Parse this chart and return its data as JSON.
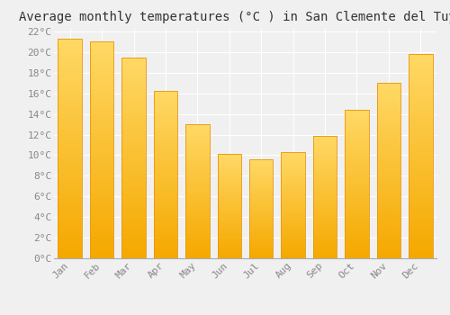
{
  "title": "Average monthly temperatures (°C ) in San Clemente del Tuyús",
  "months": [
    "Jan",
    "Feb",
    "Mar",
    "Apr",
    "May",
    "Jun",
    "Jul",
    "Aug",
    "Sep",
    "Oct",
    "Nov",
    "Dec"
  ],
  "values": [
    21.3,
    21.0,
    19.5,
    16.2,
    13.0,
    10.1,
    9.6,
    10.3,
    11.9,
    14.4,
    17.0,
    19.8
  ],
  "bar_color_bottom": "#F5A800",
  "bar_color_top": "#FFD966",
  "bar_edge_color": "#E8960A",
  "background_color": "#f0f0f0",
  "grid_color": "#ffffff",
  "ylim": [
    0,
    22
  ],
  "ytick_step": 2,
  "title_fontsize": 10,
  "tick_fontsize": 8,
  "tick_label_color": "#888888",
  "title_color": "#333333",
  "bar_width": 0.75
}
